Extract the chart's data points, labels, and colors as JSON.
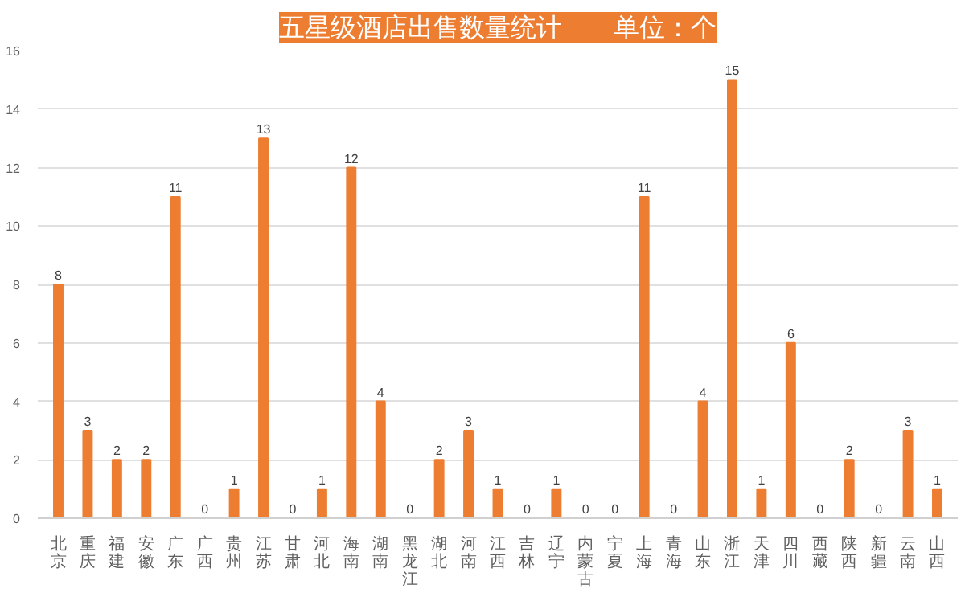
{
  "chart_data": {
    "type": "bar",
    "title": "五星级酒店出售数量统计　　单位：个",
    "categories": [
      "北京",
      "重庆",
      "福建",
      "安徽",
      "广东",
      "广西",
      "贵州",
      "江苏",
      "甘肃",
      "河北",
      "海南",
      "湖南",
      "黑龙江",
      "湖北",
      "河南",
      "江西",
      "吉林",
      "辽宁",
      "内蒙古",
      "宁夏",
      "上海",
      "青海",
      "山东",
      "浙江",
      "天津",
      "四川",
      "西藏",
      "陕西",
      "新疆",
      "云南",
      "山西"
    ],
    "values": [
      8,
      3,
      2,
      2,
      11,
      0,
      1,
      13,
      0,
      1,
      12,
      4,
      0,
      2,
      3,
      1,
      0,
      1,
      0,
      0,
      11,
      0,
      4,
      15,
      1,
      6,
      0,
      2,
      0,
      3,
      1
    ],
    "color": "#ed7d31",
    "ylim": [
      0,
      16
    ],
    "yticks": [
      0,
      2,
      4,
      6,
      8,
      10,
      12,
      14,
      16
    ],
    "grid": "y",
    "data_labels": true
  }
}
